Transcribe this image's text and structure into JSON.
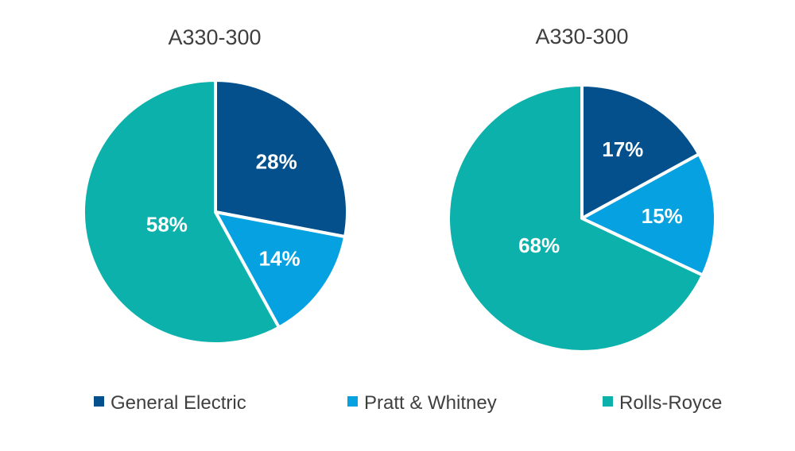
{
  "chart_data": [
    {
      "type": "pie",
      "title": "A330-300",
      "slices": [
        {
          "name": "General Electric",
          "value": 28,
          "label": "28%"
        },
        {
          "name": "Pratt & Whitney",
          "value": 14,
          "label": "14%"
        },
        {
          "name": "Rolls-Royce",
          "value": 58,
          "label": "58%"
        }
      ]
    },
    {
      "type": "pie",
      "title": "A330-300",
      "slices": [
        {
          "name": "General Electric",
          "value": 17,
          "label": "17%"
        },
        {
          "name": "Pratt & Whitney",
          "value": 15,
          "label": "15%"
        },
        {
          "name": "Rolls-Royce",
          "value": 68,
          "label": "68%"
        }
      ]
    }
  ],
  "legend": {
    "placement": "bottom",
    "items": [
      {
        "label": "General Electric",
        "color": "#03508c"
      },
      {
        "label": "Pratt & Whitney",
        "color": "#06a1e0"
      },
      {
        "label": "Rolls-Royce",
        "color": "#0bb1aa"
      }
    ]
  },
  "colors": {
    "General Electric": "#03508c",
    "Pratt & Whitney": "#06a1e0",
    "Rolls-Royce": "#0bb1aa"
  }
}
